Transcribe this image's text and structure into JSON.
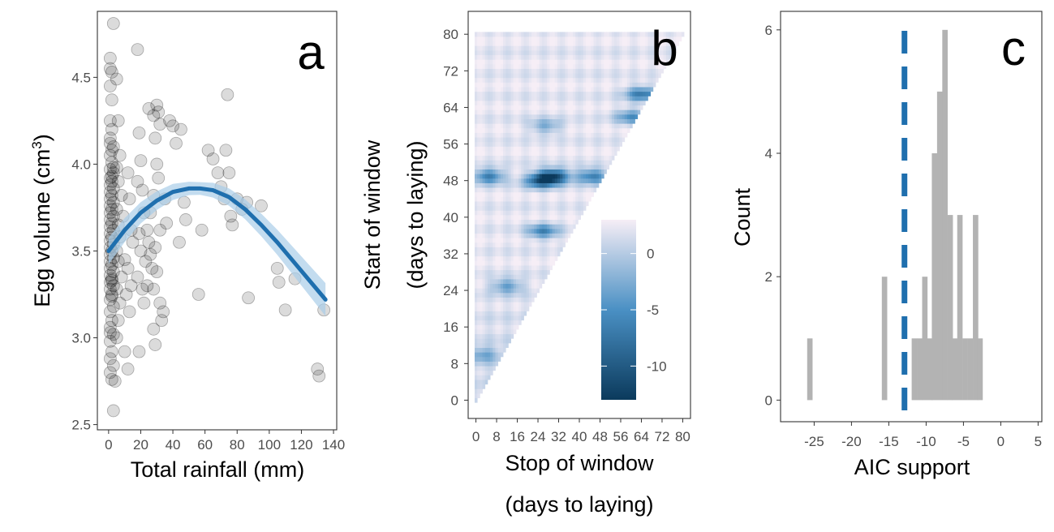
{
  "figure": {
    "panels": [
      {
        "id": "a",
        "letter": "a"
      },
      {
        "id": "b",
        "letter": "b"
      },
      {
        "id": "c",
        "letter": "c"
      }
    ]
  },
  "chart_data": [
    {
      "type": "scatter",
      "panel": "a",
      "xlabel": "Total rainfall (mm)",
      "ylabel": "Egg volume (cm",
      "ylabel_superscript": "3",
      "ylabel_suffix": ")",
      "xlim": [
        -7,
        142
      ],
      "ylim": [
        2.47,
        4.88
      ],
      "xticks": [
        0,
        20,
        40,
        60,
        80,
        100,
        120,
        140
      ],
      "yticks": [
        2.5,
        3.0,
        3.5,
        4.0,
        4.5
      ],
      "ytick_labels": [
        "2.5",
        "3.0",
        "3.5",
        "4.0",
        "4.5"
      ],
      "points": [
        [
          1,
          4.61
        ],
        [
          1,
          4.55
        ],
        [
          2,
          4.53
        ],
        [
          1,
          4.45
        ],
        [
          3,
          4.81
        ],
        [
          2,
          4.37
        ],
        [
          1,
          4.25
        ],
        [
          2,
          4.2
        ],
        [
          1,
          4.12
        ],
        [
          3,
          4.1
        ],
        [
          1,
          4.05
        ],
        [
          2,
          4.01
        ],
        [
          1,
          3.97
        ],
        [
          3,
          3.95
        ],
        [
          1,
          3.92
        ],
        [
          2,
          3.9
        ],
        [
          1,
          3.88
        ],
        [
          3,
          3.86
        ],
        [
          1,
          3.84
        ],
        [
          2,
          3.82
        ],
        [
          1,
          3.8
        ],
        [
          3,
          3.78
        ],
        [
          1,
          3.76
        ],
        [
          2,
          3.74
        ],
        [
          1,
          3.72
        ],
        [
          3,
          3.7
        ],
        [
          1,
          3.68
        ],
        [
          2,
          3.66
        ],
        [
          1,
          3.64
        ],
        [
          3,
          3.62
        ],
        [
          1,
          3.6
        ],
        [
          2,
          3.58
        ],
        [
          1,
          3.56
        ],
        [
          3,
          3.54
        ],
        [
          1,
          3.52
        ],
        [
          2,
          3.5
        ],
        [
          1,
          3.48
        ],
        [
          3,
          3.46
        ],
        [
          1,
          3.44
        ],
        [
          2,
          3.42
        ],
        [
          1,
          3.4
        ],
        [
          3,
          3.38
        ],
        [
          1,
          3.36
        ],
        [
          2,
          3.34
        ],
        [
          1,
          3.32
        ],
        [
          3,
          3.3
        ],
        [
          1,
          3.28
        ],
        [
          2,
          3.25
        ],
        [
          1,
          3.22
        ],
        [
          3,
          3.18
        ],
        [
          1,
          3.15
        ],
        [
          2,
          3.1
        ],
        [
          1,
          3.06
        ],
        [
          3,
          3.02
        ],
        [
          1,
          2.98
        ],
        [
          2,
          2.92
        ],
        [
          1,
          2.88
        ],
        [
          3,
          2.84
        ],
        [
          1,
          2.8
        ],
        [
          2,
          2.76
        ],
        [
          5,
          4.49
        ],
        [
          6,
          4.25
        ],
        [
          7,
          4.05
        ],
        [
          5,
          3.98
        ],
        [
          6,
          3.9
        ],
        [
          8,
          3.82
        ],
        [
          5,
          3.74
        ],
        [
          6,
          3.65
        ],
        [
          7,
          3.58
        ],
        [
          5,
          3.5
        ],
        [
          6,
          3.44
        ],
        [
          8,
          3.35
        ],
        [
          5,
          3.28
        ],
        [
          7,
          3.2
        ],
        [
          6,
          3.1
        ],
        [
          5,
          3.0
        ],
        [
          4,
          2.75
        ],
        [
          3,
          2.58
        ],
        [
          9,
          3.7
        ],
        [
          10,
          3.45
        ],
        [
          12,
          3.95
        ],
        [
          13,
          3.8
        ],
        [
          14,
          3.62
        ],
        [
          12,
          3.4
        ],
        [
          11,
          3.25
        ],
        [
          13,
          3.15
        ],
        [
          10,
          2.92
        ],
        [
          12,
          2.82
        ],
        [
          15,
          3.55
        ],
        [
          14,
          3.3
        ],
        [
          18,
          4.66
        ],
        [
          19,
          4.18
        ],
        [
          20,
          4.02
        ],
        [
          18,
          3.9
        ],
        [
          21,
          3.85
        ],
        [
          22,
          3.72
        ],
        [
          19,
          3.6
        ],
        [
          20,
          3.5
        ],
        [
          23,
          3.44
        ],
        [
          18,
          3.35
        ],
        [
          21,
          3.28
        ],
        [
          22,
          3.2
        ],
        [
          19,
          2.92
        ],
        [
          24,
          3.62
        ],
        [
          25,
          3.55
        ],
        [
          26,
          3.48
        ],
        [
          27,
          3.4
        ],
        [
          28,
          3.82
        ],
        [
          26,
          3.72
        ],
        [
          24,
          3.3
        ],
        [
          25,
          4.32
        ],
        [
          28,
          4.28
        ],
        [
          30,
          4.34
        ],
        [
          31,
          4.3
        ],
        [
          32,
          4.23
        ],
        [
          29,
          4.15
        ],
        [
          30,
          4.0
        ],
        [
          31,
          3.92
        ],
        [
          32,
          3.62
        ],
        [
          29,
          3.52
        ],
        [
          30,
          3.38
        ],
        [
          28,
          3.28
        ],
        [
          32,
          3.2
        ],
        [
          34,
          3.15
        ],
        [
          33,
          3.1
        ],
        [
          28,
          3.05
        ],
        [
          29,
          2.96
        ],
        [
          35,
          3.8
        ],
        [
          36,
          3.66
        ],
        [
          38,
          4.25
        ],
        [
          40,
          4.22
        ],
        [
          42,
          4.12
        ],
        [
          45,
          4.2
        ],
        [
          47,
          3.78
        ],
        [
          48,
          3.68
        ],
        [
          44,
          3.55
        ],
        [
          56,
          3.25
        ],
        [
          58,
          3.62
        ],
        [
          62,
          4.08
        ],
        [
          65,
          4.03
        ],
        [
          68,
          3.95
        ],
        [
          70,
          3.87
        ],
        [
          72,
          3.8
        ],
        [
          73,
          4.08
        ],
        [
          74,
          4.4
        ],
        [
          75,
          3.95
        ],
        [
          76,
          3.7
        ],
        [
          77,
          3.65
        ],
        [
          80,
          3.8
        ],
        [
          83,
          3.74
        ],
        [
          86,
          3.78
        ],
        [
          87,
          3.23
        ],
        [
          95,
          3.76
        ],
        [
          105,
          3.4
        ],
        [
          106,
          3.32
        ],
        [
          110,
          3.16
        ],
        [
          116,
          3.34
        ],
        [
          130,
          2.82
        ],
        [
          131,
          2.78
        ],
        [
          134,
          3.16
        ],
        [
          2,
          3.93
        ],
        [
          1,
          4.15
        ],
        [
          2,
          4.08
        ],
        [
          3,
          3.98
        ],
        [
          2,
          3.33
        ],
        [
          2,
          3.24
        ],
        [
          1,
          3.03
        ]
      ],
      "fit_line_x": [
        0,
        10,
        20,
        30,
        40,
        50,
        57,
        65,
        75,
        85,
        95,
        105,
        115,
        125,
        135
      ],
      "fit_line_y": [
        3.5,
        3.62,
        3.72,
        3.79,
        3.84,
        3.86,
        3.86,
        3.85,
        3.81,
        3.74,
        3.65,
        3.55,
        3.44,
        3.33,
        3.22
      ],
      "point_color": "#000000",
      "line_color": "#1f6fae",
      "band_color": "#a9cde8"
    },
    {
      "type": "heatmap",
      "panel": "b",
      "xlabel": "Stop of window",
      "xlabel_line2": "(days to laying)",
      "ylabel": "Start of window",
      "ylabel_line2": "(days to laying)",
      "xlim": [
        -3,
        83
      ],
      "ylim": [
        -4,
        85
      ],
      "xticks": [
        0,
        8,
        16,
        24,
        32,
        40,
        48,
        56,
        64,
        72,
        80
      ],
      "yticks": [
        0,
        8,
        16,
        24,
        32,
        40,
        48,
        56,
        64,
        72,
        80
      ],
      "color_range": [
        -13,
        3
      ],
      "legend_ticks": [
        0,
        -5,
        -10
      ],
      "low_color": "#0b3a5c",
      "mid_color": "#4a90c4",
      "high_color": "#f6eef6",
      "hotspots": [
        {
          "stop": 30,
          "start": 49,
          "value": -12
        },
        {
          "stop": 25,
          "start": 48,
          "value": -10
        },
        {
          "stop": 5,
          "start": 49,
          "value": -8
        },
        {
          "stop": 45,
          "start": 49,
          "value": -8
        },
        {
          "stop": 60,
          "start": 62,
          "value": -6
        },
        {
          "stop": 64,
          "start": 67,
          "value": -8
        },
        {
          "stop": 26,
          "start": 37,
          "value": -7
        },
        {
          "stop": 12,
          "start": 25,
          "value": -5
        },
        {
          "stop": 3,
          "start": 10,
          "value": -4
        },
        {
          "stop": 27,
          "start": 60,
          "value": -4
        }
      ]
    },
    {
      "type": "bar",
      "panel": "c",
      "xlabel": "AIC support",
      "ylabel": "Count",
      "xlim": [
        -29.5,
        5.5
      ],
      "ylim": [
        -0.35,
        6.3
      ],
      "xticks": [
        -25,
        -20,
        -15,
        -10,
        -5,
        0,
        5
      ],
      "yticks": [
        0,
        2,
        4,
        6
      ],
      "bin_width": 0.67,
      "bins": [
        [
          -25.6,
          1
        ],
        [
          -15.6,
          2
        ],
        [
          -11.6,
          1
        ],
        [
          -10.9,
          1
        ],
        [
          -10.2,
          2
        ],
        [
          -9.5,
          1
        ],
        [
          -8.9,
          4
        ],
        [
          -8.2,
          5
        ],
        [
          -7.5,
          6
        ],
        [
          -6.8,
          3
        ],
        [
          -6.2,
          1
        ],
        [
          -5.5,
          3
        ],
        [
          -4.8,
          1
        ],
        [
          -4.1,
          1
        ],
        [
          -3.4,
          3
        ],
        [
          -2.8,
          1
        ]
      ],
      "reference_line_x": -12.9,
      "bar_color": "#b3b3b3",
      "line_color": "#1f6fae"
    }
  ]
}
